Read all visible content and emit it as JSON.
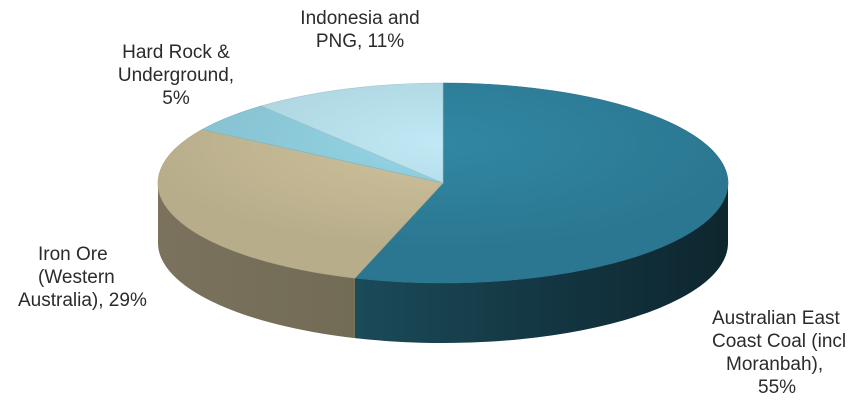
{
  "chart_data": {
    "type": "pie",
    "title": "",
    "slices": [
      {
        "label_lines": [
          "Australian East",
          "Coast Coal (incl",
          "Moranbah),",
          "55%"
        ],
        "value": 55,
        "color": "#2e7f9a"
      },
      {
        "label_lines": [
          "Iron Ore",
          "(Western",
          "Australia), 29%"
        ],
        "value": 29,
        "color": "#c4b894"
      },
      {
        "label_lines": [
          "Hard Rock &",
          "Underground,",
          "5%"
        ],
        "value": 5,
        "color": "#8ccad9"
      },
      {
        "label_lines": [
          "Indonesia and",
          "PNG, 11%"
        ],
        "value": 11,
        "color": "#b4dce7"
      }
    ],
    "legend": "none",
    "style": "3d"
  }
}
